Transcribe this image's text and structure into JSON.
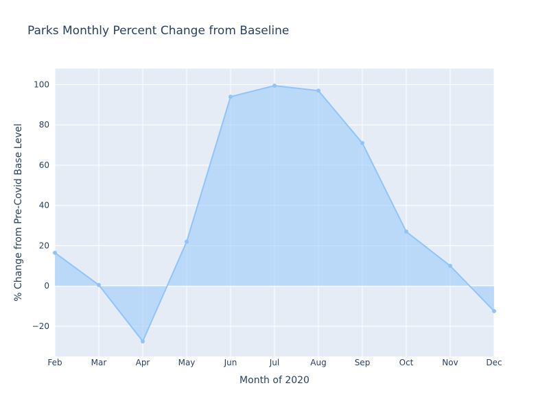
{
  "chart_data": {
    "type": "area",
    "title": "Parks Monthly Percent Change from Baseline",
    "xlabel": "Month of 2020",
    "ylabel": "% Change from Pre-Covid Base Level",
    "categories": [
      "Feb",
      "Mar",
      "Apr",
      "May",
      "Jun",
      "Jul",
      "Aug",
      "Sep",
      "Oct",
      "Nov",
      "Dec"
    ],
    "values": [
      16.5,
      0.5,
      -27.5,
      22,
      94,
      99.5,
      97,
      71,
      27,
      10,
      -12.5
    ],
    "ylim": [
      -35,
      108
    ],
    "yticks": [
      -20,
      0,
      20,
      40,
      60,
      80,
      100
    ],
    "ytick_labels": [
      "−20",
      "0",
      "20",
      "40",
      "60",
      "80",
      "100"
    ],
    "grid": true,
    "colors": {
      "line": "#90c4f9",
      "fill": "rgba(144, 196, 249, 0.5)",
      "plot_bg": "#e5ecf6",
      "grid": "#ffffff",
      "text": "#2a3f5f"
    }
  }
}
